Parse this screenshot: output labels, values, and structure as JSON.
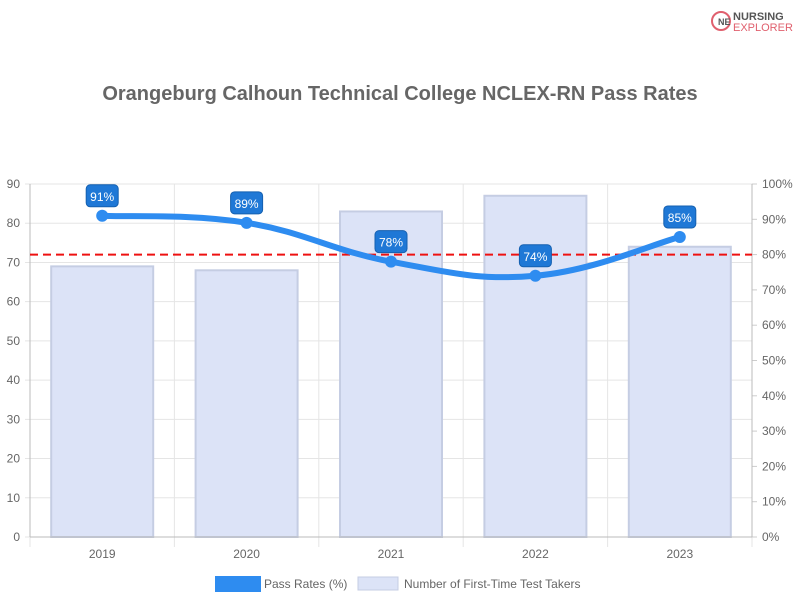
{
  "logo": {
    "line1": "NURSING",
    "line2": "EXPLORER"
  },
  "chart_data": {
    "type": "bar+line",
    "title": "Orangeburg Calhoun Technical College NCLEX-RN Pass Rates",
    "categories": [
      "2019",
      "2020",
      "2021",
      "2022",
      "2023"
    ],
    "series": [
      {
        "name": "Pass Rates (%)",
        "type": "line",
        "axis": "right",
        "values": [
          91,
          89,
          78,
          74,
          85
        ],
        "data_labels": [
          "91%",
          "89%",
          "78%",
          "74%",
          "85%"
        ],
        "color": "#2e8cf0"
      },
      {
        "name": "Number of First-Time Test Takers",
        "type": "bar",
        "axis": "left",
        "values": [
          69,
          68,
          83,
          87,
          74
        ],
        "color": "#dce3f7"
      }
    ],
    "reference_line": {
      "axis": "right",
      "value": 80,
      "color": "#ee1111",
      "style": "dashed"
    },
    "left_axis": {
      "ylim": [
        0,
        90
      ],
      "ticks": [
        "0",
        "10",
        "20",
        "30",
        "40",
        "50",
        "60",
        "70",
        "80",
        "90"
      ]
    },
    "right_axis": {
      "ylim": [
        0,
        100
      ],
      "ticks": [
        "0%",
        "10%",
        "20%",
        "30%",
        "40%",
        "50%",
        "60%",
        "70%",
        "80%",
        "90%",
        "100%"
      ]
    },
    "grid": true,
    "legend": "bottom"
  }
}
